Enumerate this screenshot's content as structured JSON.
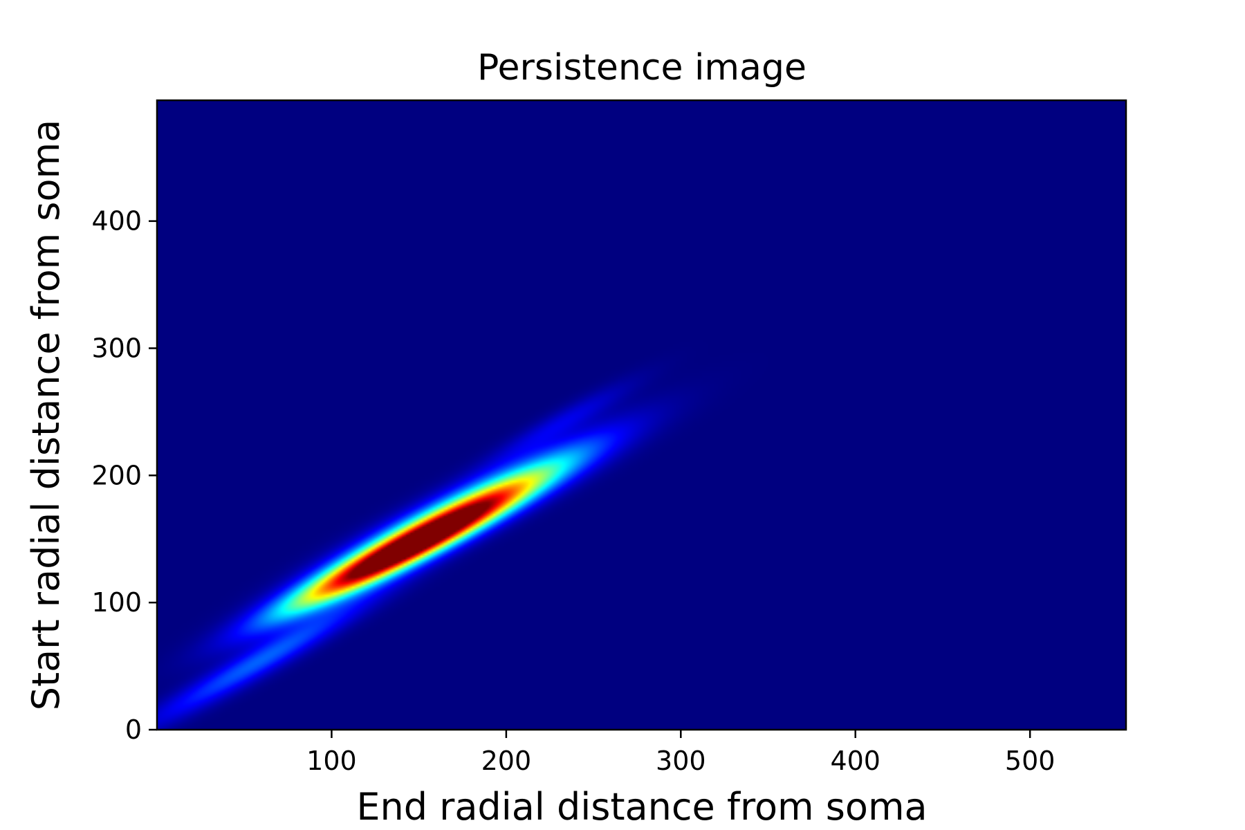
{
  "chart_data": {
    "type": "heatmap",
    "title": "Persistence image",
    "xlabel": "End radial distance from soma",
    "ylabel": "Start radial distance from soma",
    "xlim": [
      0,
      555
    ],
    "ylim": [
      0,
      495
    ],
    "xticks": [
      100,
      200,
      300,
      400,
      500
    ],
    "yticks": [
      0,
      100,
      200,
      300,
      400
    ],
    "colormap": "jet",
    "background_color": "#000080",
    "grid": false,
    "legend": "none",
    "density_components": [
      {
        "x": 140,
        "y": 140,
        "sx": 55,
        "sy": 8,
        "angle_deg": 35,
        "weight": 1.0
      },
      {
        "x": 175,
        "y": 172,
        "sx": 60,
        "sy": 10,
        "angle_deg": 35,
        "weight": 0.55
      },
      {
        "x": 60,
        "y": 55,
        "sx": 55,
        "sy": 7,
        "angle_deg": 38,
        "weight": 0.22
      },
      {
        "x": 230,
        "y": 240,
        "sx": 35,
        "sy": 6,
        "angle_deg": 38,
        "weight": 0.1
      }
    ]
  }
}
